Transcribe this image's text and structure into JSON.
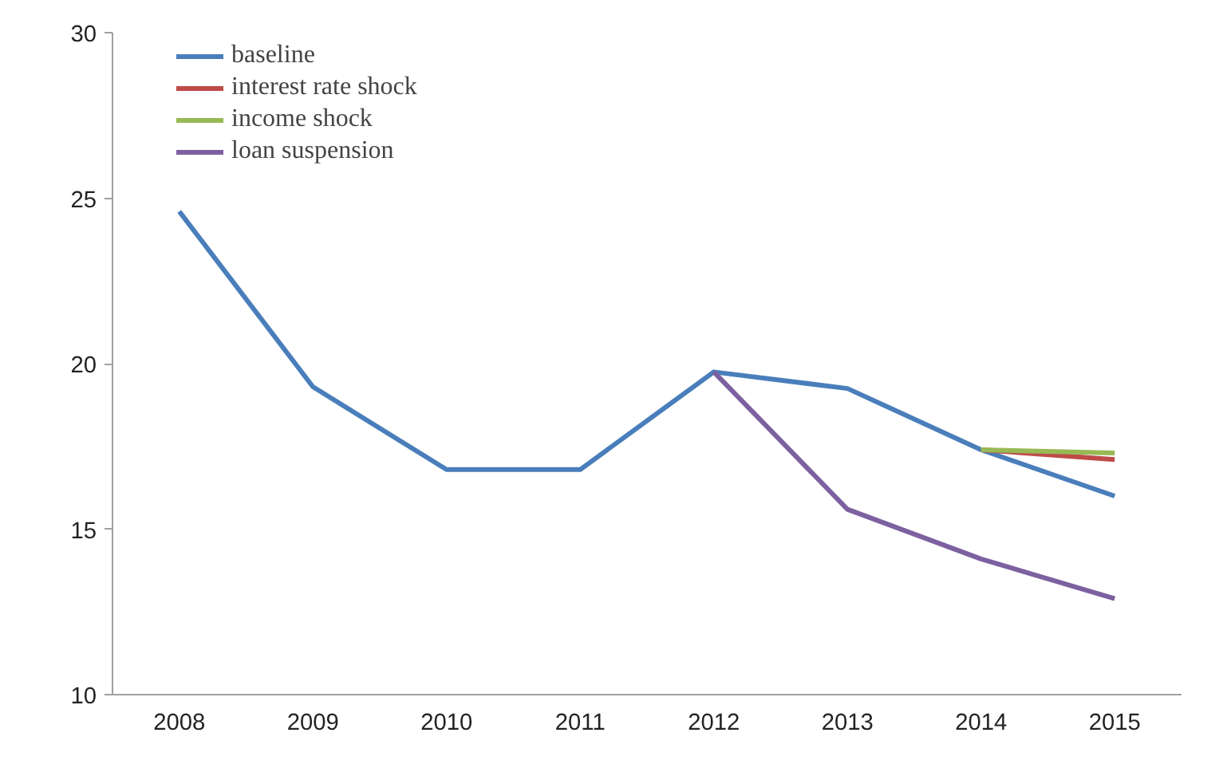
{
  "chart_data": {
    "type": "line",
    "categories": [
      "2008",
      "2009",
      "2010",
      "2011",
      "2012",
      "2013",
      "2014",
      "2015"
    ],
    "series": [
      {
        "name": "baseline",
        "color": "#4a7ebb",
        "values": [
          24.6,
          19.3,
          16.8,
          16.8,
          19.75,
          19.25,
          17.4,
          16.0
        ]
      },
      {
        "name": "interest rate shock",
        "color": "#be4b48",
        "values": [
          null,
          null,
          null,
          null,
          null,
          null,
          17.4,
          17.1
        ]
      },
      {
        "name": "income shock",
        "color": "#98b954",
        "values": [
          null,
          null,
          null,
          null,
          null,
          null,
          17.4,
          17.3
        ]
      },
      {
        "name": "loan suspension",
        "color": "#7d60a0",
        "values": [
          null,
          null,
          null,
          null,
          19.75,
          15.6,
          14.1,
          12.9
        ]
      }
    ],
    "ylim": [
      10,
      30
    ],
    "yticks": [
      10,
      15,
      20,
      25,
      30
    ],
    "grid": false,
    "legend": "top left",
    "marker": "none",
    "line_style": "solid"
  }
}
